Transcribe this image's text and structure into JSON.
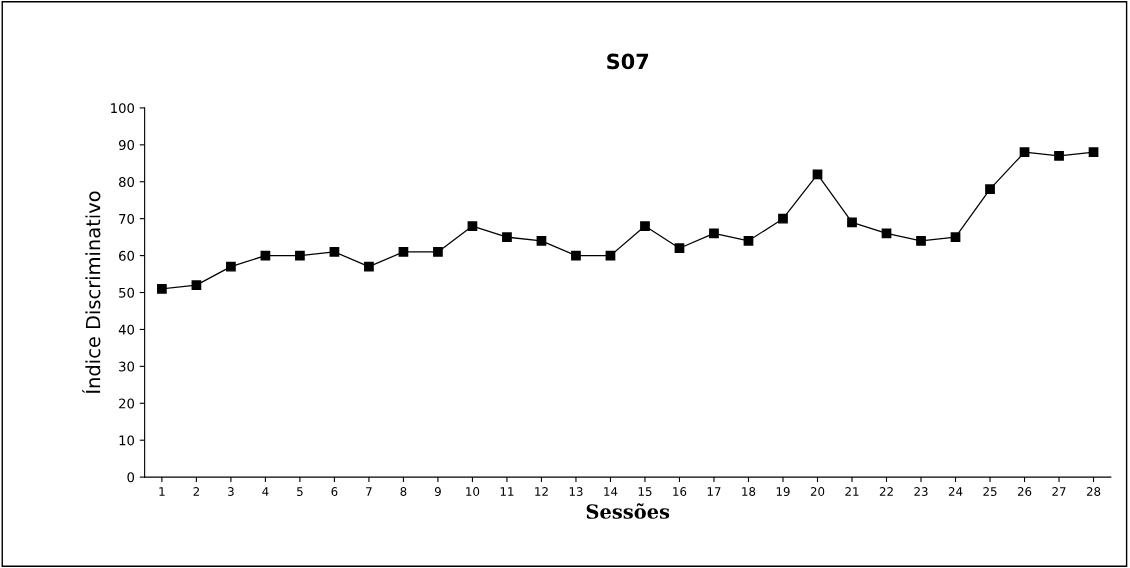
{
  "chart_data": {
    "type": "line",
    "title": "S07",
    "xlabel": "Sessões",
    "ylabel": "Índice Discriminativo",
    "categories": [
      "1",
      "2",
      "3",
      "4",
      "5",
      "6",
      "7",
      "8",
      "9",
      "10",
      "11",
      "12",
      "13",
      "14",
      "15",
      "16",
      "17",
      "18",
      "19",
      "20",
      "21",
      "22",
      "23",
      "24",
      "25",
      "26",
      "27",
      "28"
    ],
    "series": [
      {
        "color": "#000000",
        "values": [
          51,
          52,
          57,
          60,
          60,
          61,
          57,
          61,
          61,
          68,
          65,
          64,
          60,
          60,
          68,
          62,
          66,
          64,
          70,
          82,
          69,
          66,
          64,
          65,
          78,
          88,
          87,
          88
        ]
      }
    ],
    "ylim": [
      0,
      100
    ],
    "yticks": [
      0,
      10,
      20,
      30,
      40,
      50,
      60,
      70,
      80,
      90,
      100
    ],
    "grid": false,
    "legend": false,
    "marker": "square",
    "line_style": "solid"
  }
}
